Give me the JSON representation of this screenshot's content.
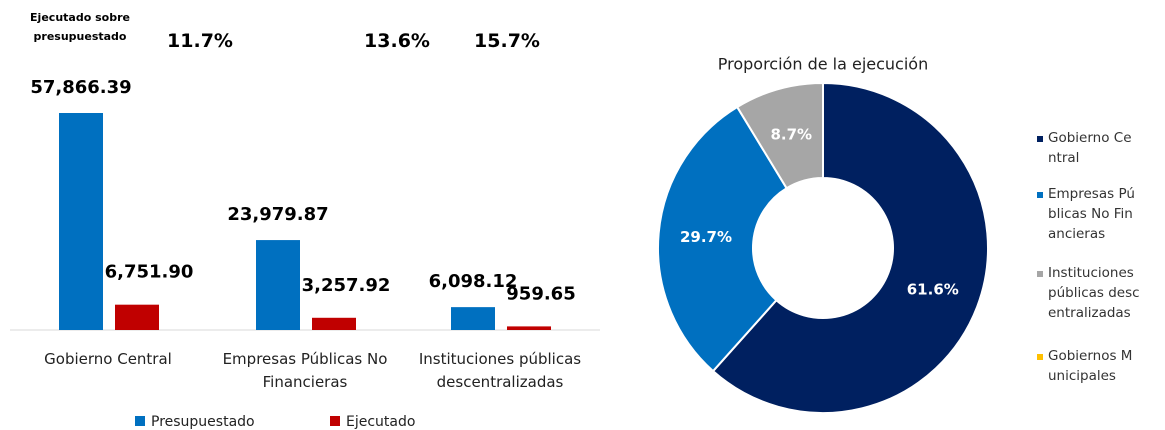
{
  "chart_data": [
    {
      "type": "bar",
      "ratio_title": "Ejecutado sobre presupuestado",
      "ratio_labels": [
        "11.7%",
        "13.6%",
        "15.7%"
      ],
      "categories": [
        "Gobierno Central",
        "Empresas Públicas No Financieras",
        "Instituciones públicas descentralizadas"
      ],
      "series": [
        {
          "name": "Presupuestado",
          "color": "#0070c0",
          "values": [
            57866.39,
            23979.87,
            6098.12
          ],
          "value_labels": [
            "57,866.39",
            "23,979.87",
            "6,098.12"
          ]
        },
        {
          "name": "Ejecutado",
          "color": "#c00000",
          "values": [
            6751.9,
            3257.92,
            959.65
          ],
          "value_labels": [
            "6,751.90",
            "3,257.92",
            "959.65"
          ]
        }
      ],
      "ylim": [
        0,
        60000
      ]
    },
    {
      "type": "donut",
      "title": "Proporción de la ejecución",
      "categories": [
        "Gobierno Central",
        "Empresas Públicas No Financieras",
        "Instituciones públicas descentralizadas",
        "Gobiernos Municipales"
      ],
      "values": [
        61.6,
        29.7,
        8.7,
        0
      ],
      "value_labels": [
        "61.6%",
        "29.7%",
        "8.7%",
        null
      ],
      "colors": [
        "#002060",
        "#0070c0",
        "#a6a6a6",
        "#ffc000"
      ]
    }
  ]
}
